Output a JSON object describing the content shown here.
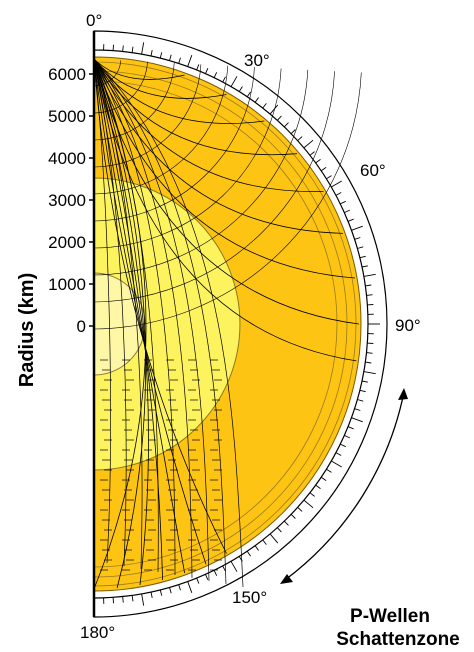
{
  "figure": {
    "y_axis_title": "Radius (km)",
    "y_ticks": [
      "6000",
      "5000",
      "4000",
      "3000",
      "2000",
      "1000",
      "0"
    ],
    "angle_labels": [
      "0°",
      "30°",
      "60°",
      "90°",
      "150°",
      "180°"
    ],
    "caption_line1": "P-Wellen",
    "caption_line2": "Schattenzone"
  },
  "colors": {
    "mantle": "#fdc413",
    "outer_core": "#fdf35e",
    "inner_core": "#fef7a6",
    "ray": "#000000",
    "scale_bg": "#ffffff"
  }
}
